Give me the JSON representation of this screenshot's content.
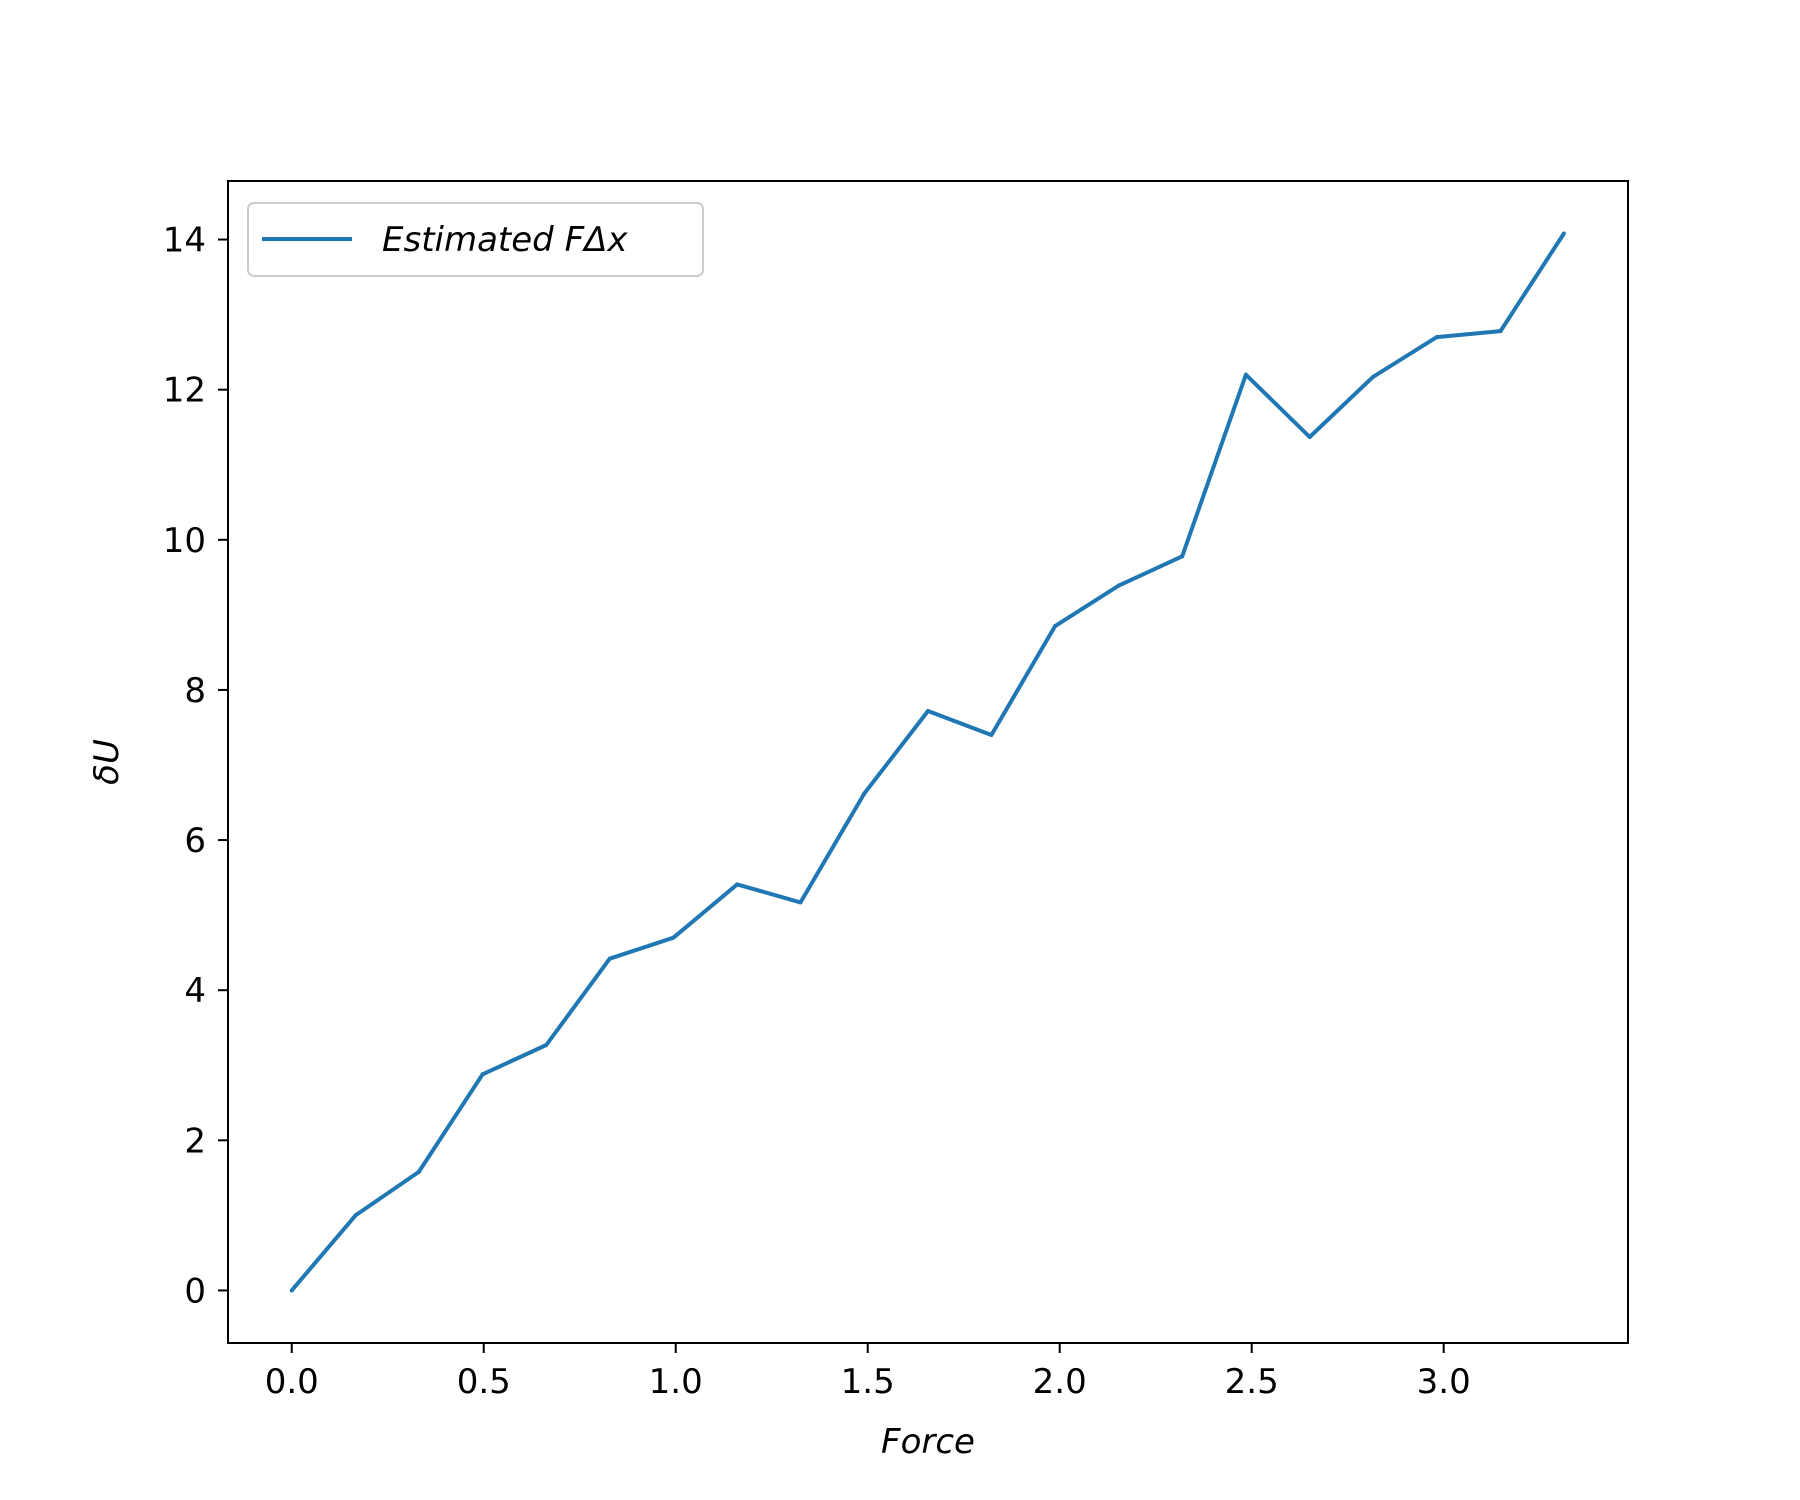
{
  "chart_data": {
    "type": "line",
    "title": "",
    "xlabel": "Force",
    "ylabel": "δU",
    "xlim": [
      -0.166,
      3.48
    ],
    "ylim": [
      -0.7,
      14.78
    ],
    "grid": false,
    "legend_position": "top-left",
    "x_ticks": [
      0.0,
      0.5,
      1.0,
      1.5,
      2.0,
      2.5,
      3.0
    ],
    "x_tick_labels": [
      "0.0",
      "0.5",
      "1.0",
      "1.5",
      "2.0",
      "2.5",
      "3.0"
    ],
    "y_ticks": [
      0,
      2,
      4,
      6,
      8,
      10,
      12,
      14
    ],
    "y_tick_labels": [
      "0",
      "2",
      "4",
      "6",
      "8",
      "10",
      "12",
      "14"
    ],
    "series": [
      {
        "name": "Estimated FΔx",
        "color": "#1f77b4",
        "x": [
          0.0,
          0.166,
          0.331,
          0.497,
          0.663,
          0.828,
          0.994,
          1.16,
          1.325,
          1.491,
          1.657,
          1.822,
          1.988,
          2.154,
          2.319,
          2.485,
          2.651,
          2.816,
          2.982,
          3.148,
          3.313
        ],
        "y": [
          0.0,
          1.0,
          1.58,
          2.88,
          3.27,
          4.42,
          4.7,
          5.41,
          5.17,
          6.62,
          7.72,
          7.4,
          8.85,
          9.39,
          9.78,
          12.2,
          11.37,
          12.17,
          12.7,
          12.78,
          14.08
        ]
      }
    ]
  }
}
